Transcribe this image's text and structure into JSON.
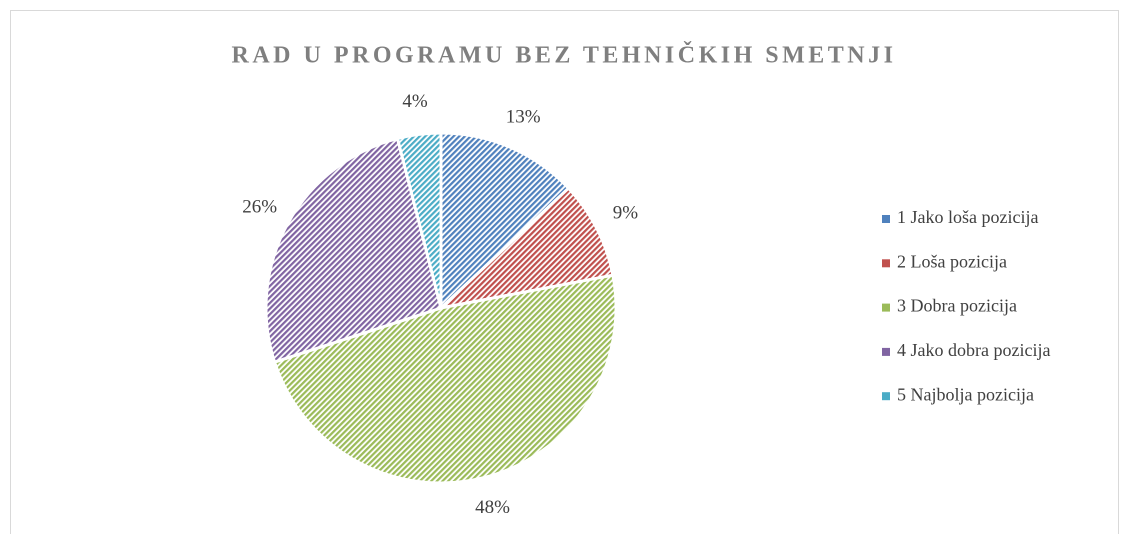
{
  "chart_data": {
    "type": "pie",
    "title": "RAD U PROGRAMU BEZ TEHNIČKIH SMETNJI",
    "categories": [
      "1 Jako loša pozicija",
      "2 Loša pozicija",
      "3 Dobra pozicija",
      "4 Jako dobra pozicija",
      "5 Najbolja pozicija"
    ],
    "values": [
      13,
      9,
      48,
      26,
      4
    ],
    "value_labels": [
      "13%",
      "9%",
      "48%",
      "26%",
      "4%"
    ],
    "colors": [
      "#4f81bd",
      "#c0504d",
      "#9bbb59",
      "#8064a2",
      "#4bacc6"
    ],
    "legend": "right"
  }
}
